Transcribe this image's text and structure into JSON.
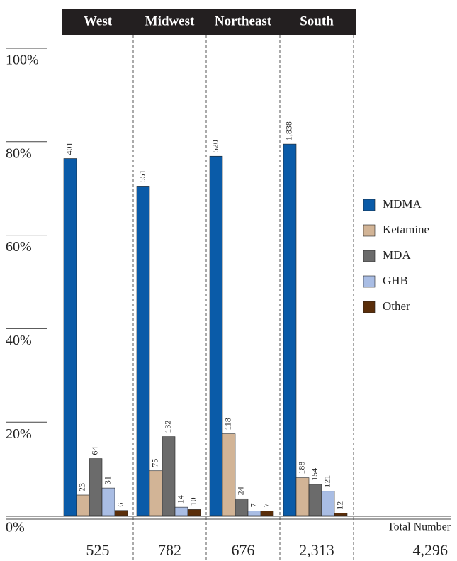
{
  "chart_data": {
    "type": "bar",
    "categories": [
      "West",
      "Midwest",
      "Northeast",
      "South"
    ],
    "series": [
      {
        "name": "MDMA",
        "color": "#0a5ba8",
        "values": [
          76.4,
          70.5,
          76.9,
          79.5
        ],
        "count_labels": [
          "401",
          "551",
          "520",
          "1,838"
        ]
      },
      {
        "name": "Ketamine",
        "color": "#d2b496",
        "values": [
          4.4,
          9.6,
          17.5,
          8.1
        ],
        "count_labels": [
          "23",
          "75",
          "118",
          "188"
        ]
      },
      {
        "name": "MDA",
        "color": "#6b6b6b",
        "values": [
          12.2,
          16.9,
          3.6,
          6.7
        ],
        "count_labels": [
          "64",
          "132",
          "24",
          "154"
        ]
      },
      {
        "name": "GHB",
        "color": "#a9bde4",
        "values": [
          5.9,
          1.8,
          1.0,
          5.2
        ],
        "count_labels": [
          "31",
          "14",
          "7",
          "121"
        ]
      },
      {
        "name": "Other",
        "color": "#5a2e0a",
        "values": [
          1.1,
          1.3,
          1.0,
          0.5
        ],
        "count_labels": [
          "6",
          "10",
          "7",
          "12"
        ]
      }
    ],
    "ylim": [
      0,
      100
    ],
    "yticks": [
      {
        "value": 0,
        "label": "0%"
      },
      {
        "value": 20,
        "label": "20%"
      },
      {
        "value": 40,
        "label": "40%"
      },
      {
        "value": 60,
        "label": "60%"
      },
      {
        "value": 80,
        "label": "80%"
      },
      {
        "value": 100,
        "label": "100%"
      }
    ],
    "total_number_label": "Total Number",
    "totals": [
      "525",
      "782",
      "676",
      "2,313"
    ],
    "grand_total": "4,296"
  }
}
